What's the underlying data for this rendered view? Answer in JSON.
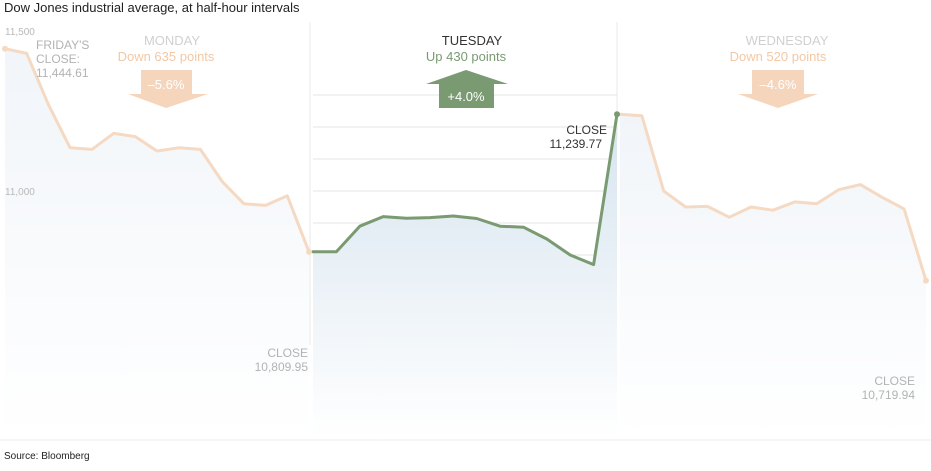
{
  "chart_data": {
    "type": "line",
    "title": "Dow Jones industrial average, at half-hour intervals",
    "source": "Source: Bloomberg",
    "y_ticks": [
      "11,500",
      "11,000"
    ],
    "y_tick_values": [
      11500,
      11000
    ],
    "days": [
      {
        "name": "MONDAY",
        "change": "Down 635 points",
        "pct": "–5.6%",
        "direction": "down",
        "color": "#f5d9c2",
        "values": [
          11444.61,
          11430,
          11270,
          11135,
          11130,
          11180,
          11170,
          11125,
          11135,
          11130,
          11030,
          10960,
          10955,
          10985,
          10809.95
        ]
      },
      {
        "name": "TUESDAY",
        "change": "Up 430 points",
        "pct": "+4.0%",
        "direction": "up",
        "color": "#7a9a72",
        "values": [
          10809.95,
          10810,
          10890,
          10920,
          10915,
          10917,
          10922,
          10914,
          10890,
          10887,
          10850,
          10800,
          10770,
          11239.77
        ]
      },
      {
        "name": "WEDNESDAY",
        "change": "Down 520 points",
        "pct": "–4.6%",
        "direction": "down",
        "color": "#f5d9c2",
        "values": [
          11239.77,
          11235,
          11000,
          10950,
          10952,
          10918,
          10950,
          10940,
          10966,
          10960,
          11004,
          11020,
          10980,
          10944,
          10719.94
        ]
      }
    ],
    "annotations": {
      "friday": {
        "line1": "FRIDAY'S",
        "line2": "CLOSE:",
        "value": "11,444.61"
      },
      "monday_close": {
        "label": "CLOSE",
        "value": "10,809.95"
      },
      "tuesday_close": {
        "label": "CLOSE",
        "value": "11,239.77"
      },
      "wednesday_close": {
        "label": "CLOSE",
        "value": "10,719.94"
      }
    },
    "colors": {
      "down_line": "#f5d9c2",
      "down_text": "#f2c8a4",
      "up_line": "#7a9a72",
      "up_text": "#7a9a72",
      "area_fill": "#dde9f2",
      "grid": "#e6e6e6",
      "muted_text": "#b3b3b3"
    }
  }
}
